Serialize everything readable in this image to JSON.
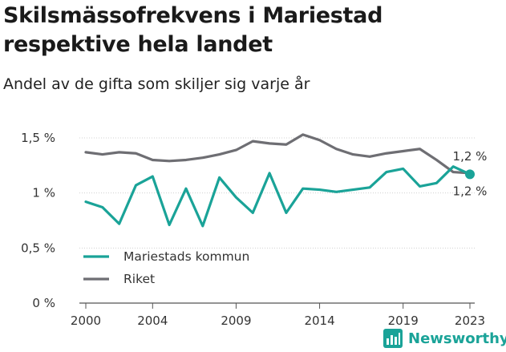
{
  "title": "Skilsmässofrekvens i Mariestad respektive hela landet",
  "subtitle": "Andel av de gifta som skiljer sig varje år",
  "brand": "Newsworthy",
  "colors": {
    "mariestad": "#1aa398",
    "riket": "#6e6e73",
    "grid": "#d0d0d0",
    "axis": "#555555"
  },
  "chart_data": {
    "type": "line",
    "x": [
      2000,
      2001,
      2002,
      2003,
      2004,
      2005,
      2006,
      2007,
      2008,
      2009,
      2010,
      2011,
      2012,
      2013,
      2014,
      2015,
      2016,
      2017,
      2018,
      2019,
      2020,
      2021,
      2022,
      2023
    ],
    "series": [
      {
        "name": "Mariestads kommun",
        "color": "#1aa398",
        "values": [
          0.92,
          0.87,
          0.72,
          1.07,
          1.15,
          0.71,
          1.04,
          0.7,
          1.14,
          0.96,
          0.82,
          1.18,
          0.82,
          1.04,
          1.03,
          1.01,
          1.03,
          1.05,
          1.19,
          1.22,
          1.06,
          1.09,
          1.24,
          1.17
        ]
      },
      {
        "name": "Riket",
        "color": "#6e6e73",
        "values": [
          1.37,
          1.35,
          1.37,
          1.36,
          1.3,
          1.29,
          1.3,
          1.32,
          1.35,
          1.39,
          1.47,
          1.45,
          1.44,
          1.53,
          1.48,
          1.4,
          1.35,
          1.33,
          1.36,
          1.38,
          1.4,
          1.3,
          1.19,
          1.18
        ]
      }
    ],
    "xticks": [
      2000,
      2004,
      2009,
      2014,
      2019,
      2023
    ],
    "yticks": [
      {
        "value": 0,
        "label": "0 %"
      },
      {
        "value": 0.5,
        "label": "0,5 %"
      },
      {
        "value": 1,
        "label": "1 %"
      },
      {
        "value": 1.5,
        "label": "1,5 %"
      }
    ],
    "ylim": [
      0,
      1.5
    ],
    "xlim": [
      2000,
      2023
    ],
    "end_labels": {
      "riket": "1,2 %",
      "mariestad": "1,2 %"
    },
    "legend": [
      {
        "name": "Mariestads kommun",
        "color": "#1aa398"
      },
      {
        "name": "Riket",
        "color": "#6e6e73"
      }
    ],
    "legend_position": "bottom-left",
    "grid": true
  }
}
